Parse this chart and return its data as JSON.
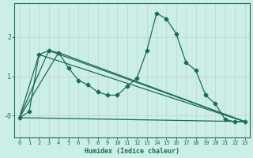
{
  "xlabel": "Humidex (Indice chaleur)",
  "ylabel": "",
  "bg_color": "#cceee8",
  "line_color": "#1a6b5a",
  "grid_color": "#c8d8d0",
  "xlim": [
    -0.5,
    23.5
  ],
  "ylim": [
    -0.55,
    2.85
  ],
  "xticks": [
    0,
    1,
    2,
    3,
    4,
    5,
    6,
    7,
    8,
    9,
    10,
    11,
    12,
    13,
    14,
    15,
    16,
    17,
    18,
    19,
    20,
    21,
    22,
    23
  ],
  "yticks": [
    0.0,
    1.0,
    2.0
  ],
  "ytick_labels": [
    "-0",
    "1",
    "2"
  ],
  "line1_x": [
    0,
    1,
    2,
    3,
    4,
    5,
    6,
    7,
    8,
    9,
    10,
    11,
    12,
    13,
    14,
    15,
    16,
    17,
    18,
    19,
    20,
    21,
    22,
    23
  ],
  "line1_y": [
    -0.05,
    0.1,
    1.55,
    1.65,
    1.6,
    1.22,
    0.9,
    0.78,
    0.6,
    0.52,
    0.52,
    0.75,
    0.95,
    1.65,
    2.6,
    2.45,
    2.08,
    1.35,
    1.15,
    0.52,
    0.3,
    -0.1,
    -0.15,
    -0.15
  ],
  "line2_x": [
    0,
    23
  ],
  "line2_y": [
    -0.05,
    -0.15
  ],
  "line3_x": [
    0,
    2,
    23
  ],
  "line3_y": [
    -0.05,
    1.55,
    -0.15
  ],
  "line4_x": [
    0,
    3,
    23
  ],
  "line4_y": [
    -0.05,
    1.65,
    -0.15
  ],
  "line5_x": [
    0,
    4,
    23
  ],
  "line5_y": [
    -0.05,
    1.6,
    -0.15
  ],
  "marker": "D",
  "markersize": 2.5,
  "linewidth": 0.9
}
